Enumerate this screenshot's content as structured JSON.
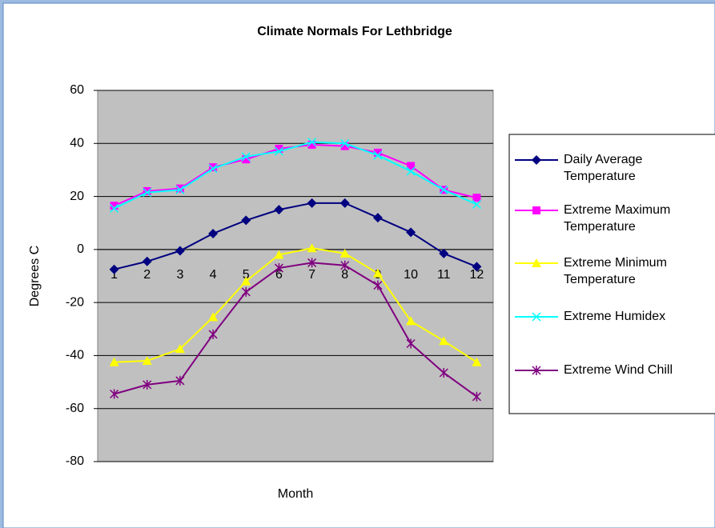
{
  "chart_data": {
    "type": "line",
    "title": "Climate Normals For Lethbridge",
    "x_label": "Month",
    "y_label": "Degrees C",
    "categories": [
      1,
      2,
      3,
      4,
      5,
      6,
      7,
      8,
      9,
      10,
      11,
      12
    ],
    "ylim": [
      -80,
      60
    ],
    "yticks": [
      -80,
      -60,
      -40,
      -20,
      0,
      20,
      40,
      60
    ],
    "grid": true,
    "legend": "right",
    "series": [
      {
        "name": "Daily Average Temperature",
        "color": "#000080",
        "marker": "diamond",
        "values": [
          -7.5,
          -4.5,
          -0.5,
          6,
          11,
          15,
          17.5,
          17.5,
          12,
          6.5,
          -1.5,
          -6.5
        ]
      },
      {
        "name": "Extreme Maximum Temperature",
        "color": "#ff00ff",
        "marker": "square",
        "values": [
          16.5,
          22,
          23,
          31,
          34,
          38,
          39.5,
          39,
          36.5,
          31.5,
          22.5,
          19.5
        ]
      },
      {
        "name": "Extreme Minimum Temperature",
        "color": "#ffff00",
        "marker": "triangle",
        "values": [
          -42.5,
          -42,
          -37.5,
          -25.5,
          -12,
          -2,
          0.5,
          -1.5,
          -9,
          -27,
          -34.5,
          -42.5
        ]
      },
      {
        "name": "Extreme Humidex",
        "color": "#00ffff",
        "marker": "x",
        "values": [
          15.5,
          21.5,
          22.5,
          30.5,
          35,
          37,
          40.5,
          40,
          35.5,
          29.5,
          22.5,
          17
        ]
      },
      {
        "name": "Extreme Wind Chill",
        "color": "#800080",
        "marker": "star",
        "values": [
          -54.5,
          -51,
          -49.5,
          -32,
          -16,
          -7,
          -5,
          -6,
          -13.5,
          -35.5,
          -46.5,
          -55.5
        ]
      }
    ]
  }
}
